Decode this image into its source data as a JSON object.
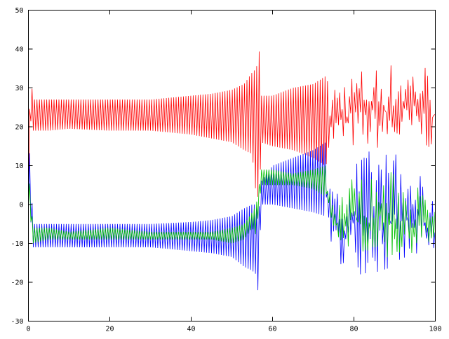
{
  "chart_data": {
    "type": "line",
    "title": "",
    "xlabel": "",
    "ylabel": "",
    "xlim": [
      0,
      100
    ],
    "ylim": [
      -30,
      50
    ],
    "x_ticks": [
      "0",
      "20",
      "40",
      "60",
      "80",
      "100"
    ],
    "y_ticks": [
      "-30",
      "-20",
      "-10",
      "0",
      "10",
      "20",
      "30",
      "40",
      "50"
    ],
    "grid": false,
    "legend": "none",
    "note": "Oscillating series summarized as envelope (min/max) over x",
    "series": [
      {
        "name": "red",
        "color": "#ff0000",
        "x": [
          0,
          0.5,
          1,
          5,
          10,
          20,
          30,
          40,
          45,
          50,
          53,
          55,
          56,
          56.8,
          57.2,
          60,
          65,
          70,
          73,
          75,
          80,
          85,
          90,
          95,
          97,
          100
        ],
        "lo": [
          0,
          22,
          19,
          19,
          19.5,
          19,
          19,
          18,
          17,
          16,
          14,
          13,
          2,
          2,
          16,
          15,
          14,
          12,
          10,
          14,
          14,
          14,
          14,
          15,
          14,
          14
        ],
        "hi": [
          0,
          41,
          27,
          27,
          27,
          27,
          27,
          28,
          28.5,
          29.5,
          31,
          34,
          35,
          40,
          28,
          28,
          30,
          31,
          33,
          32,
          35,
          36,
          37,
          37,
          38,
          31
        ]
      },
      {
        "name": "blue",
        "color": "#0000ff",
        "x": [
          0,
          0.5,
          1,
          5,
          10,
          20,
          30,
          40,
          45,
          50,
          53,
          55,
          56,
          56.5,
          57.2,
          60,
          65,
          70,
          73,
          75,
          80,
          85,
          90,
          95,
          100
        ],
        "lo": [
          0,
          -3,
          -11,
          -11,
          -11,
          -11,
          -11,
          -12,
          -12.5,
          -13.5,
          -16,
          -17,
          -18,
          -23,
          0,
          0,
          -1,
          -2,
          -3,
          -14,
          -18,
          -18,
          -19,
          -15,
          -15
        ],
        "hi": [
          0,
          22,
          -5,
          -5,
          -5,
          -5,
          -5,
          -4.5,
          -4,
          -3,
          -1,
          0,
          0,
          -3,
          6,
          10,
          12,
          14,
          16,
          2,
          12,
          15,
          14,
          10,
          0
        ]
      },
      {
        "name": "green",
        "color": "#00c000",
        "x": [
          0,
          0.5,
          1,
          5,
          10,
          20,
          30,
          40,
          45,
          50,
          53,
          55,
          56,
          57.2,
          60,
          65,
          70,
          73,
          75,
          80,
          85,
          90,
          95,
          100
        ],
        "lo": [
          0,
          -3,
          -10,
          -9,
          -9,
          -9,
          -9,
          -9,
          -9,
          -10,
          -9,
          -6,
          -8,
          5,
          5,
          5,
          4,
          2,
          -10,
          -12,
          -13,
          -15,
          -12,
          -12
        ],
        "hi": [
          0,
          9,
          -6,
          -6,
          -7,
          -6,
          -7,
          -7,
          -7,
          -6,
          -5,
          -2,
          0,
          9,
          9,
          8,
          9,
          10,
          2,
          8,
          7,
          9,
          6,
          0
        ]
      }
    ]
  }
}
